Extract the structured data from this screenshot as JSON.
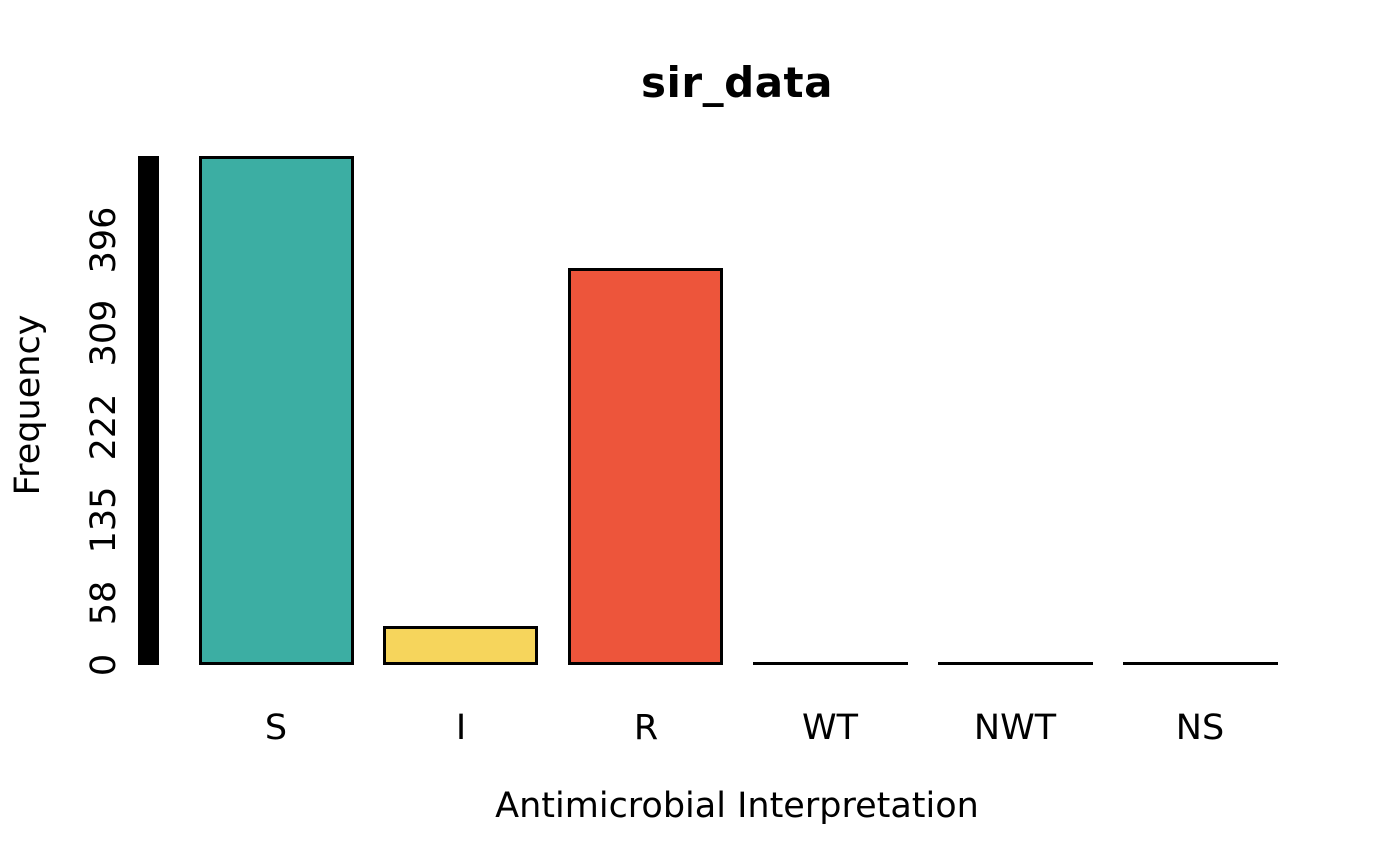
{
  "page": {
    "background": "#ffffff"
  },
  "chart_data": {
    "type": "bar",
    "title": "sir_data",
    "xlabel": "Antimicrobial Interpretation",
    "ylabel": "Frequency",
    "categories": [
      "S",
      "I",
      "R",
      "WT",
      "NWT",
      "NS"
    ],
    "values": [
      474,
      36,
      370,
      0,
      0,
      0
    ],
    "bar_colors": [
      "#3CAEA3",
      "#F6D55C",
      "#ED553B",
      null,
      null,
      null
    ],
    "bar_border_color": "#000000",
    "axis_bar_color": "#000000",
    "ytick_labels": [
      "0",
      "58",
      "135",
      "222",
      "309",
      "396"
    ],
    "ytick_values": [
      0,
      58,
      135,
      222,
      309,
      396
    ],
    "ylim": [
      0,
      474
    ],
    "grid": false,
    "legend": null,
    "background": "#ffffff"
  }
}
